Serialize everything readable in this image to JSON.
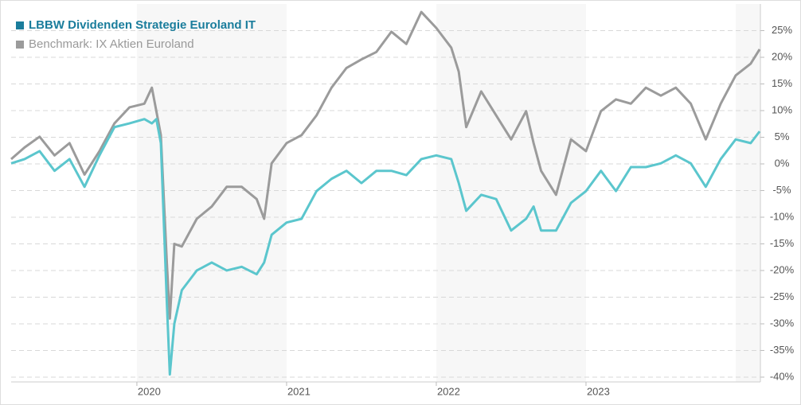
{
  "chart_data": {
    "type": "line",
    "x": [
      2019.16,
      2019.25,
      2019.35,
      2019.45,
      2019.55,
      2019.65,
      2019.75,
      2019.85,
      2019.95,
      2020.05,
      2020.1,
      2020.13,
      2020.16,
      2020.2,
      2020.22,
      2020.25,
      2020.3,
      2020.4,
      2020.5,
      2020.6,
      2020.7,
      2020.8,
      2020.85,
      2020.9,
      2021.0,
      2021.1,
      2021.2,
      2021.3,
      2021.4,
      2021.5,
      2021.6,
      2021.7,
      2021.8,
      2021.9,
      2022.0,
      2022.1,
      2022.15,
      2022.2,
      2022.3,
      2022.4,
      2022.5,
      2022.6,
      2022.65,
      2022.7,
      2022.8,
      2022.9,
      2023.0,
      2023.1,
      2023.2,
      2023.3,
      2023.4,
      2023.5,
      2023.6,
      2023.7,
      2023.8,
      2023.9,
      2024.0,
      2024.1,
      2024.16
    ],
    "series": [
      {
        "name": "LBBW Dividenden Strategie Euroland IT",
        "color": "#5bc6cd",
        "values": [
          0.1,
          0.9,
          2.4,
          -1.3,
          0.9,
          -4.3,
          1.6,
          6.9,
          7.6,
          8.4,
          7.6,
          8.4,
          3.9,
          -26,
          -39.5,
          -30,
          -23.7,
          -20,
          -18.5,
          -20,
          -19.3,
          -20.7,
          -18.5,
          -13.3,
          -11,
          -10.3,
          -5.1,
          -2.8,
          -1.3,
          -3.6,
          -1.3,
          -1.3,
          -2.1,
          0.9,
          1.6,
          0.9,
          -3.6,
          -8.8,
          -5.8,
          -6.6,
          -12.5,
          -10.3,
          -8,
          -12.5,
          -12.5,
          -7.3,
          -5.1,
          -1.3,
          -5.1,
          -0.6,
          -0.6,
          0.1,
          1.6,
          0.1,
          -4.3,
          0.9,
          4.6,
          3.9,
          6.1
        ]
      },
      {
        "name": "Benchmark: IX Aktien Euroland",
        "color": "#9b9b9b",
        "values": [
          0.9,
          3.1,
          5.1,
          1.6,
          3.9,
          -2,
          2.4,
          7.6,
          10.6,
          11.3,
          14.3,
          9.9,
          5.4,
          -18.5,
          -29,
          -15,
          -15.5,
          -10.3,
          -8,
          -4.3,
          -4.3,
          -6.6,
          -10.3,
          0.1,
          3.9,
          5.4,
          9.1,
          14.3,
          18,
          19.6,
          21,
          24.8,
          22.5,
          28.5,
          25.5,
          21.8,
          17.3,
          6.9,
          13.6,
          9.1,
          4.6,
          9.9,
          3.9,
          -1.3,
          -5.8,
          4.6,
          2.4,
          9.9,
          12.1,
          11.3,
          14.3,
          12.8,
          14.3,
          11.3,
          4.6,
          11.3,
          16.6,
          18.8,
          21.5
        ]
      }
    ],
    "xlim": [
      2019.16,
      2024.165
    ],
    "xticks": [
      2020,
      2021,
      2022,
      2023
    ],
    "ylim": [
      -40.9,
      30
    ],
    "yticks": [
      {
        "value": 25,
        "label": "25%"
      },
      {
        "value": 20,
        "label": "20%"
      },
      {
        "value": 15,
        "label": "15%"
      },
      {
        "value": 10,
        "label": "10%"
      },
      {
        "value": 5,
        "label": "5%"
      },
      {
        "value": 0,
        "label": "0%"
      },
      {
        "value": -5,
        "label": "-5%"
      },
      {
        "value": -10,
        "label": "-10%"
      },
      {
        "value": -15,
        "label": "-15%"
      },
      {
        "value": -20,
        "label": "-20%"
      },
      {
        "value": -25,
        "label": "-25%"
      },
      {
        "value": -30,
        "label": "-30%"
      },
      {
        "value": -35,
        "label": "-35%"
      },
      {
        "value": -40,
        "label": "-40%"
      }
    ],
    "grid": true,
    "legend": "top-left"
  }
}
